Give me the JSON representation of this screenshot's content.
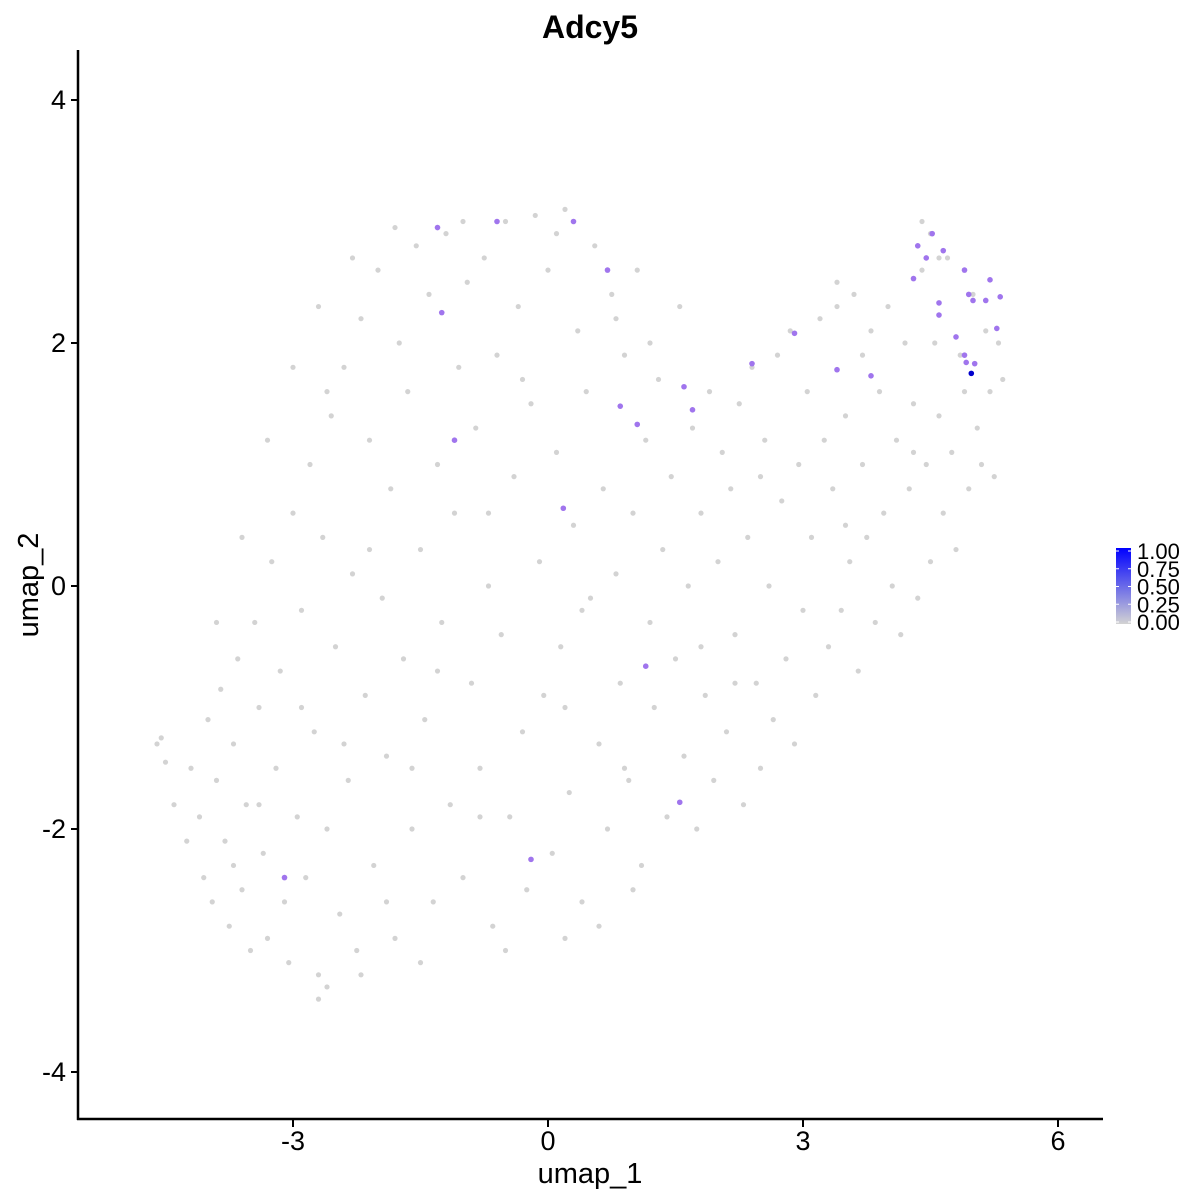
{
  "chart_data": {
    "type": "scatter",
    "title": "Adcy5",
    "xlabel": "umap_1",
    "ylabel": "umap_2",
    "xlim": [
      -5.35,
      6.6
    ],
    "ylim": [
      -4.35,
      4.4
    ],
    "xticks": [
      -3,
      0,
      3,
      6
    ],
    "xtick_labels": [
      "-3",
      "0",
      "3",
      "6"
    ],
    "yticks": [
      -4,
      -2,
      0,
      2,
      4
    ],
    "ytick_labels": [
      "-4",
      "-2",
      "0",
      "2",
      "4"
    ],
    "grid": false,
    "legend_position": "right",
    "color_scale": {
      "low_color": "#d3d3d3",
      "high_color": "#0000ff",
      "min": 0,
      "max": 1,
      "breaks": [
        1.0,
        0.75,
        0.5,
        0.25,
        0.0
      ],
      "break_labels": [
        "1.00",
        "0.75",
        "0.50",
        "0.25",
        "0.00"
      ]
    },
    "background_points_note_values_approx": true,
    "background_points": [
      [
        -4.6,
        -1.3
      ],
      [
        -4.55,
        -1.25
      ],
      [
        -4.5,
        -1.45
      ],
      [
        -4.4,
        -1.8
      ],
      [
        -4.25,
        -2.1
      ],
      [
        -4.2,
        -1.5
      ],
      [
        -4.1,
        -1.9
      ],
      [
        -4.05,
        -2.4
      ],
      [
        -4.0,
        -1.1
      ],
      [
        -3.95,
        -2.6
      ],
      [
        -3.9,
        -1.6
      ],
      [
        -3.85,
        -0.85
      ],
      [
        -3.8,
        -2.1
      ],
      [
        -3.75,
        -2.8
      ],
      [
        -3.7,
        -1.3
      ],
      [
        -3.65,
        -0.6
      ],
      [
        -3.6,
        -2.5
      ],
      [
        -3.55,
        -1.8
      ],
      [
        -3.5,
        -3.0
      ],
      [
        -3.45,
        -0.3
      ],
      [
        -3.4,
        -1.0
      ],
      [
        -3.35,
        -2.2
      ],
      [
        -3.3,
        -2.9
      ],
      [
        -3.25,
        0.2
      ],
      [
        -3.2,
        -1.5
      ],
      [
        -3.15,
        -0.7
      ],
      [
        -3.1,
        -2.6
      ],
      [
        -3.05,
        -3.1
      ],
      [
        -3.0,
        0.6
      ],
      [
        -2.95,
        -1.9
      ],
      [
        -2.9,
        -0.2
      ],
      [
        -2.85,
        -2.4
      ],
      [
        -2.8,
        1.0
      ],
      [
        -2.75,
        -1.2
      ],
      [
        -2.7,
        -3.2
      ],
      [
        -2.65,
        0.4
      ],
      [
        -2.6,
        -2.0
      ],
      [
        -2.55,
        1.4
      ],
      [
        -2.5,
        -0.5
      ],
      [
        -2.45,
        -2.7
      ],
      [
        -2.4,
        1.8
      ],
      [
        -2.35,
        -1.6
      ],
      [
        -2.3,
        0.1
      ],
      [
        -2.25,
        -3.0
      ],
      [
        -2.2,
        2.2
      ],
      [
        -2.15,
        -0.9
      ],
      [
        -2.1,
        1.2
      ],
      [
        -2.05,
        -2.3
      ],
      [
        -2.0,
        2.6
      ],
      [
        -1.95,
        -0.1
      ],
      [
        -1.9,
        -1.4
      ],
      [
        -1.85,
        0.8
      ],
      [
        -1.8,
        -2.9
      ],
      [
        -1.75,
        2.0
      ],
      [
        -1.7,
        -0.6
      ],
      [
        -1.65,
        1.6
      ],
      [
        -1.6,
        -2.0
      ],
      [
        -1.55,
        2.8
      ],
      [
        -1.5,
        0.3
      ],
      [
        -1.45,
        -1.1
      ],
      [
        -1.4,
        2.4
      ],
      [
        -1.35,
        -2.6
      ],
      [
        -1.3,
        1.0
      ],
      [
        -1.25,
        -0.3
      ],
      [
        -1.2,
        2.9
      ],
      [
        -1.15,
        -1.8
      ],
      [
        -1.1,
        0.6
      ],
      [
        -1.05,
        1.8
      ],
      [
        -1.0,
        -2.4
      ],
      [
        -0.95,
        2.5
      ],
      [
        -0.9,
        -0.8
      ],
      [
        -0.85,
        1.3
      ],
      [
        -0.8,
        -1.5
      ],
      [
        -0.75,
        2.7
      ],
      [
        -0.7,
        0.0
      ],
      [
        -0.65,
        -2.8
      ],
      [
        -0.6,
        1.9
      ],
      [
        -0.55,
        -0.4
      ],
      [
        -0.5,
        3.0
      ],
      [
        -0.45,
        -1.9
      ],
      [
        -0.4,
        0.9
      ],
      [
        -0.35,
        2.3
      ],
      [
        -0.3,
        -1.2
      ],
      [
        -0.25,
        -2.5
      ],
      [
        -0.2,
        1.5
      ],
      [
        -0.15,
        3.05
      ],
      [
        -0.1,
        0.2
      ],
      [
        -0.05,
        -0.9
      ],
      [
        0.0,
        2.6
      ],
      [
        0.05,
        -2.2
      ],
      [
        0.1,
        1.1
      ],
      [
        0.15,
        -0.5
      ],
      [
        0.2,
        3.1
      ],
      [
        0.25,
        -1.7
      ],
      [
        0.3,
        0.5
      ],
      [
        0.35,
        2.1
      ],
      [
        0.4,
        -2.6
      ],
      [
        0.45,
        1.6
      ],
      [
        0.5,
        -0.1
      ],
      [
        0.55,
        2.8
      ],
      [
        0.6,
        -1.3
      ],
      [
        0.65,
        0.8
      ],
      [
        0.7,
        -2.0
      ],
      [
        0.75,
        2.4
      ],
      [
        0.8,
        0.1
      ],
      [
        0.85,
        -0.8
      ],
      [
        0.9,
        1.9
      ],
      [
        0.95,
        -1.6
      ],
      [
        1.0,
        0.6
      ],
      [
        1.05,
        2.6
      ],
      [
        1.1,
        -2.3
      ],
      [
        1.15,
        1.2
      ],
      [
        1.2,
        -0.3
      ],
      [
        1.25,
        -1.0
      ],
      [
        1.3,
        1.7
      ],
      [
        1.35,
        0.3
      ],
      [
        1.4,
        -1.9
      ],
      [
        1.45,
        0.9
      ],
      [
        1.5,
        -0.6
      ],
      [
        1.55,
        2.3
      ],
      [
        1.6,
        -1.4
      ],
      [
        1.65,
        0.0
      ],
      [
        1.7,
        1.3
      ],
      [
        1.75,
        -2.0
      ],
      [
        1.8,
        0.6
      ],
      [
        1.85,
        -0.9
      ],
      [
        1.9,
        1.6
      ],
      [
        1.95,
        -1.6
      ],
      [
        2.0,
        0.2
      ],
      [
        2.05,
        1.1
      ],
      [
        2.1,
        -1.2
      ],
      [
        2.15,
        0.8
      ],
      [
        2.2,
        -0.4
      ],
      [
        2.25,
        1.5
      ],
      [
        2.3,
        -1.8
      ],
      [
        2.35,
        0.4
      ],
      [
        2.4,
        1.8
      ],
      [
        2.45,
        -0.8
      ],
      [
        2.5,
        -1.5
      ],
      [
        2.55,
        1.2
      ],
      [
        2.6,
        0.0
      ],
      [
        2.65,
        -1.1
      ],
      [
        2.7,
        1.9
      ],
      [
        2.75,
        0.7
      ],
      [
        2.8,
        -0.6
      ],
      [
        2.85,
        2.1
      ],
      [
        2.9,
        -1.3
      ],
      [
        2.95,
        1.0
      ],
      [
        3.0,
        -0.2
      ],
      [
        3.05,
        1.6
      ],
      [
        3.1,
        0.4
      ],
      [
        3.15,
        -0.9
      ],
      [
        3.2,
        2.2
      ],
      [
        3.25,
        1.2
      ],
      [
        3.3,
        -0.5
      ],
      [
        3.35,
        0.8
      ],
      [
        3.4,
        2.3
      ],
      [
        3.45,
        -0.2
      ],
      [
        3.5,
        1.4
      ],
      [
        3.55,
        0.2
      ],
      [
        3.6,
        2.4
      ],
      [
        3.65,
        -0.7
      ],
      [
        3.7,
        1.0
      ],
      [
        3.75,
        0.4
      ],
      [
        3.8,
        2.1
      ],
      [
        3.85,
        -0.3
      ],
      [
        3.9,
        1.6
      ],
      [
        3.95,
        0.6
      ],
      [
        4.0,
        2.3
      ],
      [
        4.05,
        0.0
      ],
      [
        4.1,
        1.2
      ],
      [
        4.15,
        -0.4
      ],
      [
        4.2,
        2.0
      ],
      [
        4.25,
        0.8
      ],
      [
        4.3,
        1.5
      ],
      [
        4.35,
        -0.1
      ],
      [
        4.4,
        2.6
      ],
      [
        4.45,
        1.0
      ],
      [
        4.5,
        0.2
      ],
      [
        4.55,
        2.0
      ],
      [
        4.6,
        1.4
      ],
      [
        4.65,
        0.6
      ],
      [
        4.7,
        2.7
      ],
      [
        4.75,
        1.1
      ],
      [
        4.8,
        0.3
      ],
      [
        4.85,
        1.9
      ],
      [
        4.9,
        1.6
      ],
      [
        4.95,
        0.8
      ],
      [
        5.0,
        2.4
      ],
      [
        5.05,
        1.3
      ],
      [
        5.1,
        1.0
      ],
      [
        5.15,
        2.1
      ],
      [
        5.2,
        1.6
      ],
      [
        5.25,
        0.9
      ],
      [
        5.3,
        2.0
      ],
      [
        5.35,
        1.7
      ],
      [
        4.5,
        2.9
      ],
      [
        4.4,
        3.0
      ],
      [
        4.6,
        2.7
      ],
      [
        3.4,
        2.5
      ],
      [
        -2.7,
        -3.4
      ],
      [
        -2.6,
        -3.3
      ],
      [
        -2.2,
        -3.2
      ],
      [
        -1.5,
        -3.1
      ],
      [
        -0.5,
        -3.0
      ],
      [
        0.2,
        -2.9
      ],
      [
        0.6,
        -2.8
      ],
      [
        1.0,
        -2.5
      ],
      [
        -3.9,
        -0.3
      ],
      [
        -3.6,
        0.4
      ],
      [
        -3.3,
        1.2
      ],
      [
        -3.0,
        1.8
      ],
      [
        -2.7,
        2.3
      ],
      [
        -2.3,
        2.7
      ],
      [
        -1.8,
        2.95
      ],
      [
        -1.0,
        3.0
      ],
      [
        0.1,
        2.9
      ],
      [
        0.8,
        2.2
      ],
      [
        -2.9,
        -1.0
      ],
      [
        -1.3,
        -0.7
      ],
      [
        0.4,
        -0.2
      ],
      [
        1.8,
        -0.5
      ],
      [
        -0.7,
        0.6
      ],
      [
        -2.1,
        0.3
      ],
      [
        -3.4,
        -1.8
      ],
      [
        -1.6,
        -1.5
      ],
      [
        0.2,
        -1.0
      ],
      [
        2.5,
        0.9
      ],
      [
        3.7,
        1.9
      ],
      [
        -0.3,
        1.7
      ],
      [
        -2.6,
        1.6
      ],
      [
        1.2,
        2.0
      ],
      [
        -1.9,
        -2.6
      ],
      [
        -0.8,
        -1.9
      ],
      [
        0.9,
        -1.5
      ],
      [
        2.2,
        -0.8
      ],
      [
        3.5,
        0.5
      ],
      [
        4.3,
        1.1
      ],
      [
        -3.7,
        -2.3
      ],
      [
        -2.4,
        -1.3
      ]
    ],
    "expressing_points": [
      {
        "x": -1.3,
        "y": 2.95,
        "value": 0.45
      },
      {
        "x": -0.6,
        "y": 3.0,
        "value": 0.45
      },
      {
        "x": 0.3,
        "y": 3.0,
        "value": 0.45
      },
      {
        "x": 0.7,
        "y": 2.6,
        "value": 0.45
      },
      {
        "x": -1.25,
        "y": 2.25,
        "value": 0.45
      },
      {
        "x": -1.1,
        "y": 1.2,
        "value": 0.45
      },
      {
        "x": 0.85,
        "y": 1.48,
        "value": 0.45
      },
      {
        "x": 1.05,
        "y": 1.33,
        "value": 0.45
      },
      {
        "x": 1.6,
        "y": 1.64,
        "value": 0.45
      },
      {
        "x": 1.7,
        "y": 1.45,
        "value": 0.45
      },
      {
        "x": 0.18,
        "y": 0.64,
        "value": 0.45
      },
      {
        "x": 2.4,
        "y": 1.83,
        "value": 0.45
      },
      {
        "x": 2.9,
        "y": 2.08,
        "value": 0.45
      },
      {
        "x": 3.4,
        "y": 1.78,
        "value": 0.45
      },
      {
        "x": 3.8,
        "y": 1.73,
        "value": 0.45
      },
      {
        "x": 4.3,
        "y": 2.53,
        "value": 0.45
      },
      {
        "x": 4.35,
        "y": 2.8,
        "value": 0.45
      },
      {
        "x": 4.45,
        "y": 2.7,
        "value": 0.45
      },
      {
        "x": 4.52,
        "y": 2.9,
        "value": 0.45
      },
      {
        "x": 4.65,
        "y": 2.76,
        "value": 0.45
      },
      {
        "x": 4.6,
        "y": 2.33,
        "value": 0.45
      },
      {
        "x": 4.6,
        "y": 2.23,
        "value": 0.45
      },
      {
        "x": 4.8,
        "y": 2.05,
        "value": 0.45
      },
      {
        "x": 4.9,
        "y": 2.6,
        "value": 0.45
      },
      {
        "x": 4.95,
        "y": 2.4,
        "value": 0.45
      },
      {
        "x": 5.0,
        "y": 2.35,
        "value": 0.45
      },
      {
        "x": 5.15,
        "y": 2.35,
        "value": 0.45
      },
      {
        "x": 5.2,
        "y": 2.52,
        "value": 0.45
      },
      {
        "x": 5.32,
        "y": 2.38,
        "value": 0.45
      },
      {
        "x": 5.28,
        "y": 2.12,
        "value": 0.45
      },
      {
        "x": 4.9,
        "y": 1.9,
        "value": 0.45
      },
      {
        "x": 4.92,
        "y": 1.84,
        "value": 0.45
      },
      {
        "x": 5.02,
        "y": 1.83,
        "value": 0.45
      },
      {
        "x": 4.98,
        "y": 1.75,
        "value": 1.0
      },
      {
        "x": 1.15,
        "y": -0.66,
        "value": 0.45
      },
      {
        "x": 1.55,
        "y": -1.78,
        "value": 0.45
      },
      {
        "x": -0.2,
        "y": -2.25,
        "value": 0.45
      },
      {
        "x": -3.1,
        "y": -2.4,
        "value": 0.45
      }
    ]
  }
}
